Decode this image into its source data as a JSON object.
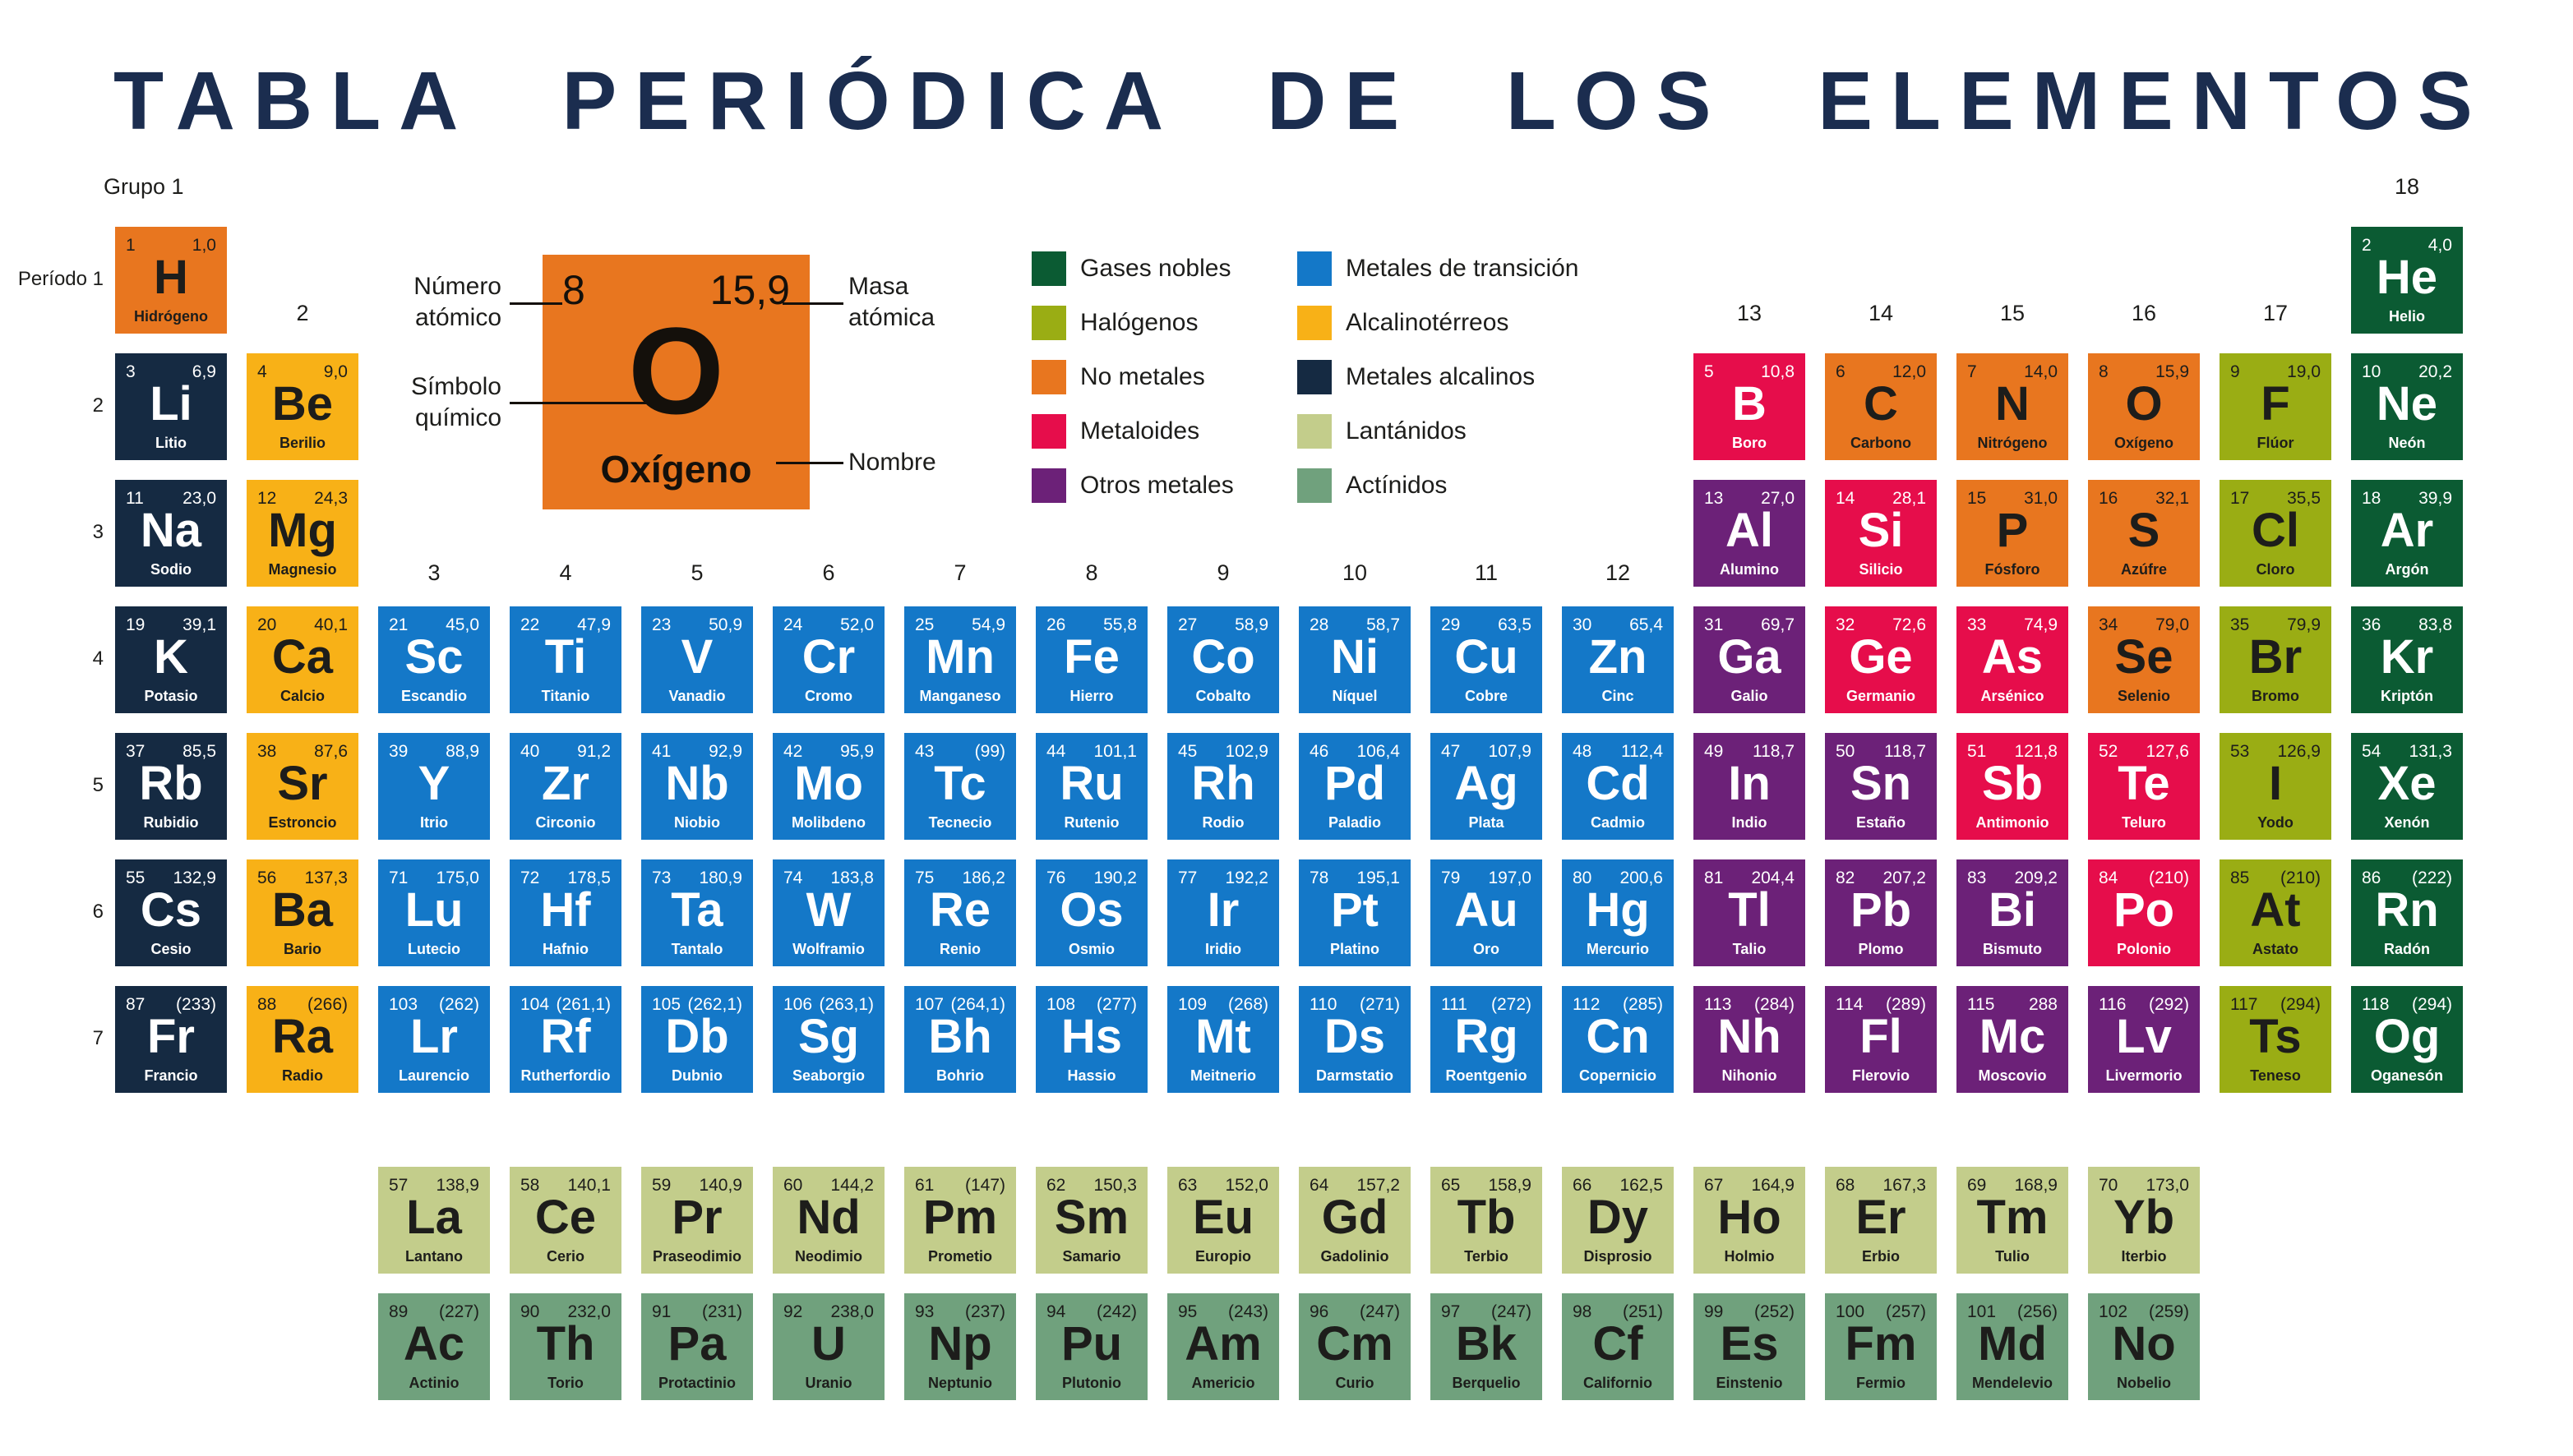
{
  "title": "TABLA PERIÓDICA DE LOS ELEMENTOS",
  "corner": {
    "grupo_label": "Grupo 1"
  },
  "period_labels": {
    "first": "Período 1",
    "rest": [
      "2",
      "3",
      "4",
      "5",
      "6",
      "7"
    ]
  },
  "group_labels": [
    {
      "text": "18",
      "col": 18,
      "tier": "top"
    },
    {
      "text": "2",
      "col": 2,
      "tier": "mid"
    },
    {
      "text": "13",
      "col": 13,
      "tier": "mid"
    },
    {
      "text": "14",
      "col": 14,
      "tier": "mid"
    },
    {
      "text": "15",
      "col": 15,
      "tier": "mid"
    },
    {
      "text": "16",
      "col": 16,
      "tier": "mid"
    },
    {
      "text": "17",
      "col": 17,
      "tier": "mid"
    },
    {
      "text": "3",
      "col": 3,
      "tier": "low"
    },
    {
      "text": "4",
      "col": 4,
      "tier": "low"
    },
    {
      "text": "5",
      "col": 5,
      "tier": "low"
    },
    {
      "text": "6",
      "col": 6,
      "tier": "low"
    },
    {
      "text": "7",
      "col": 7,
      "tier": "low"
    },
    {
      "text": "8",
      "col": 8,
      "tier": "low"
    },
    {
      "text": "9",
      "col": 9,
      "tier": "low"
    },
    {
      "text": "10",
      "col": 10,
      "tier": "low"
    },
    {
      "text": "11",
      "col": 11,
      "tier": "low"
    },
    {
      "text": "12",
      "col": 12,
      "tier": "low"
    }
  ],
  "example": {
    "atomic_number": "8",
    "atomic_mass": "15,9",
    "symbol": "O",
    "name": "Oxígeno",
    "annotations": {
      "numero": "Número\natómico",
      "simbolo": "Símbolo\nquímico",
      "masa": "Masa\natómica",
      "nombre": "Nombre"
    }
  },
  "legend": {
    "left": [
      {
        "label": "Gases nobles",
        "category": "noble"
      },
      {
        "label": "Halógenos",
        "category": "halogen"
      },
      {
        "label": "No metales",
        "category": "nonmetal"
      },
      {
        "label": "Metaloides",
        "category": "metalloid"
      },
      {
        "label": "Otros metales",
        "category": "othermetal"
      }
    ],
    "right": [
      {
        "label": "Metales de transición",
        "category": "transition"
      },
      {
        "label": "Alcalinotérreos",
        "category": "alkearth"
      },
      {
        "label": "Metales alcalinos",
        "category": "alkali"
      },
      {
        "label": "Lantánidos",
        "category": "lanthanide"
      },
      {
        "label": "Actínidos",
        "category": "actinide"
      }
    ]
  },
  "category_colors": {
    "nonmetal": "#E8761F",
    "noble": "#0B5B33",
    "halogen": "#9AAD14",
    "metalloid": "#E60D4B",
    "othermetal": "#6C2178",
    "transition": "#1478C8",
    "alkearth": "#F8B117",
    "alkali": "#152A42",
    "lanthanide": "#C3CD8B",
    "actinide": "#70A17D"
  },
  "dark_text_categories": [
    "nonmetal",
    "halogen",
    "alkearth",
    "lanthanide",
    "actinide"
  ],
  "text_colors": {
    "dark": "#1D1D1B",
    "light": "#FFFFFF"
  },
  "title_color": "#1B2D4F",
  "elements_schema": [
    "atomic_number",
    "atomic_mass",
    "symbol",
    "name",
    "category",
    "row",
    "col"
  ],
  "elements": [
    [
      "1",
      "1,0",
      "H",
      "Hidrógeno",
      "nonmetal",
      1,
      1
    ],
    [
      "2",
      "4,0",
      "He",
      "Helio",
      "noble",
      1,
      18
    ],
    [
      "3",
      "6,9",
      "Li",
      "Litio",
      "alkali",
      2,
      1
    ],
    [
      "4",
      "9,0",
      "Be",
      "Berilio",
      "alkearth",
      2,
      2
    ],
    [
      "5",
      "10,8",
      "B",
      "Boro",
      "metalloid",
      2,
      13
    ],
    [
      "6",
      "12,0",
      "C",
      "Carbono",
      "nonmetal",
      2,
      14
    ],
    [
      "7",
      "14,0",
      "N",
      "Nitrógeno",
      "nonmetal",
      2,
      15
    ],
    [
      "8",
      "15,9",
      "O",
      "Oxígeno",
      "nonmetal",
      2,
      16
    ],
    [
      "9",
      "19,0",
      "F",
      "Flúor",
      "halogen",
      2,
      17
    ],
    [
      "10",
      "20,2",
      "Ne",
      "Neón",
      "noble",
      2,
      18
    ],
    [
      "11",
      "23,0",
      "Na",
      "Sodio",
      "alkali",
      3,
      1
    ],
    [
      "12",
      "24,3",
      "Mg",
      "Magnesio",
      "alkearth",
      3,
      2
    ],
    [
      "13",
      "27,0",
      "Al",
      "Alumino",
      "othermetal",
      3,
      13
    ],
    [
      "14",
      "28,1",
      "Si",
      "Silicio",
      "metalloid",
      3,
      14
    ],
    [
      "15",
      "31,0",
      "P",
      "Fósforo",
      "nonmetal",
      3,
      15
    ],
    [
      "16",
      "32,1",
      "S",
      "Azúfre",
      "nonmetal",
      3,
      16
    ],
    [
      "17",
      "35,5",
      "Cl",
      "Cloro",
      "halogen",
      3,
      17
    ],
    [
      "18",
      "39,9",
      "Ar",
      "Argón",
      "noble",
      3,
      18
    ],
    [
      "19",
      "39,1",
      "K",
      "Potasio",
      "alkali",
      4,
      1
    ],
    [
      "20",
      "40,1",
      "Ca",
      "Calcio",
      "alkearth",
      4,
      2
    ],
    [
      "21",
      "45,0",
      "Sc",
      "Escandio",
      "transition",
      4,
      3
    ],
    [
      "22",
      "47,9",
      "Ti",
      "Titanio",
      "transition",
      4,
      4
    ],
    [
      "23",
      "50,9",
      "V",
      "Vanadio",
      "transition",
      4,
      5
    ],
    [
      "24",
      "52,0",
      "Cr",
      "Cromo",
      "transition",
      4,
      6
    ],
    [
      "25",
      "54,9",
      "Mn",
      "Manganeso",
      "transition",
      4,
      7
    ],
    [
      "26",
      "55,8",
      "Fe",
      "Hierro",
      "transition",
      4,
      8
    ],
    [
      "27",
      "58,9",
      "Co",
      "Cobalto",
      "transition",
      4,
      9
    ],
    [
      "28",
      "58,7",
      "Ni",
      "Níquel",
      "transition",
      4,
      10
    ],
    [
      "29",
      "63,5",
      "Cu",
      "Cobre",
      "transition",
      4,
      11
    ],
    [
      "30",
      "65,4",
      "Zn",
      "Cinc",
      "transition",
      4,
      12
    ],
    [
      "31",
      "69,7",
      "Ga",
      "Galio",
      "othermetal",
      4,
      13
    ],
    [
      "32",
      "72,6",
      "Ge",
      "Germanio",
      "metalloid",
      4,
      14
    ],
    [
      "33",
      "74,9",
      "As",
      "Arsénico",
      "metalloid",
      4,
      15
    ],
    [
      "34",
      "79,0",
      "Se",
      "Selenio",
      "nonmetal",
      4,
      16
    ],
    [
      "35",
      "79,9",
      "Br",
      "Bromo",
      "halogen",
      4,
      17
    ],
    [
      "36",
      "83,8",
      "Kr",
      "Kriptón",
      "noble",
      4,
      18
    ],
    [
      "37",
      "85,5",
      "Rb",
      "Rubidio",
      "alkali",
      5,
      1
    ],
    [
      "38",
      "87,6",
      "Sr",
      "Estroncio",
      "alkearth",
      5,
      2
    ],
    [
      "39",
      "88,9",
      "Y",
      "Itrio",
      "transition",
      5,
      3
    ],
    [
      "40",
      "91,2",
      "Zr",
      "Circonio",
      "transition",
      5,
      4
    ],
    [
      "41",
      "92,9",
      "Nb",
      "Niobio",
      "transition",
      5,
      5
    ],
    [
      "42",
      "95,9",
      "Mo",
      "Molibdeno",
      "transition",
      5,
      6
    ],
    [
      "43",
      "(99)",
      "Tc",
      "Tecnecio",
      "transition",
      5,
      7
    ],
    [
      "44",
      "101,1",
      "Ru",
      "Rutenio",
      "transition",
      5,
      8
    ],
    [
      "45",
      "102,9",
      "Rh",
      "Rodio",
      "transition",
      5,
      9
    ],
    [
      "46",
      "106,4",
      "Pd",
      "Paladio",
      "transition",
      5,
      10
    ],
    [
      "47",
      "107,9",
      "Ag",
      "Plata",
      "transition",
      5,
      11
    ],
    [
      "48",
      "112,4",
      "Cd",
      "Cadmio",
      "transition",
      5,
      12
    ],
    [
      "49",
      "118,7",
      "In",
      "Indio",
      "othermetal",
      5,
      13
    ],
    [
      "50",
      "118,7",
      "Sn",
      "Estaño",
      "othermetal",
      5,
      14
    ],
    [
      "51",
      "121,8",
      "Sb",
      "Antimonio",
      "metalloid",
      5,
      15
    ],
    [
      "52",
      "127,6",
      "Te",
      "Teluro",
      "metalloid",
      5,
      16
    ],
    [
      "53",
      "126,9",
      "I",
      "Yodo",
      "halogen",
      5,
      17
    ],
    [
      "54",
      "131,3",
      "Xe",
      "Xenón",
      "noble",
      5,
      18
    ],
    [
      "55",
      "132,9",
      "Cs",
      "Cesio",
      "alkali",
      6,
      1
    ],
    [
      "56",
      "137,3",
      "Ba",
      "Bario",
      "alkearth",
      6,
      2
    ],
    [
      "71",
      "175,0",
      "Lu",
      "Lutecio",
      "transition",
      6,
      3
    ],
    [
      "72",
      "178,5",
      "Hf",
      "Hafnio",
      "transition",
      6,
      4
    ],
    [
      "73",
      "180,9",
      "Ta",
      "Tantalo",
      "transition",
      6,
      5
    ],
    [
      "74",
      "183,8",
      "W",
      "Wolframio",
      "transition",
      6,
      6
    ],
    [
      "75",
      "186,2",
      "Re",
      "Renio",
      "transition",
      6,
      7
    ],
    [
      "76",
      "190,2",
      "Os",
      "Osmio",
      "transition",
      6,
      8
    ],
    [
      "77",
      "192,2",
      "Ir",
      "Iridio",
      "transition",
      6,
      9
    ],
    [
      "78",
      "195,1",
      "Pt",
      "Platino",
      "transition",
      6,
      10
    ],
    [
      "79",
      "197,0",
      "Au",
      "Oro",
      "transition",
      6,
      11
    ],
    [
      "80",
      "200,6",
      "Hg",
      "Mercurio",
      "transition",
      6,
      12
    ],
    [
      "81",
      "204,4",
      "Tl",
      "Talio",
      "othermetal",
      6,
      13
    ],
    [
      "82",
      "207,2",
      "Pb",
      "Plomo",
      "othermetal",
      6,
      14
    ],
    [
      "83",
      "209,2",
      "Bi",
      "Bismuto",
      "othermetal",
      6,
      15
    ],
    [
      "84",
      "(210)",
      "Po",
      "Polonio",
      "metalloid",
      6,
      16
    ],
    [
      "85",
      "(210)",
      "At",
      "Astato",
      "halogen",
      6,
      17
    ],
    [
      "86",
      "(222)",
      "Rn",
      "Radón",
      "noble",
      6,
      18
    ],
    [
      "87",
      "(233)",
      "Fr",
      "Francio",
      "alkali",
      7,
      1
    ],
    [
      "88",
      "(266)",
      "Ra",
      "Radio",
      "alkearth",
      7,
      2
    ],
    [
      "103",
      "(262)",
      "Lr",
      "Laurencio",
      "transition",
      7,
      3
    ],
    [
      "104",
      "(261,1)",
      "Rf",
      "Rutherfordio",
      "transition",
      7,
      4
    ],
    [
      "105",
      "(262,1)",
      "Db",
      "Dubnio",
      "transition",
      7,
      5
    ],
    [
      "106",
      "(263,1)",
      "Sg",
      "Seaborgio",
      "transition",
      7,
      6
    ],
    [
      "107",
      "(264,1)",
      "Bh",
      "Bohrio",
      "transition",
      7,
      7
    ],
    [
      "108",
      "(277)",
      "Hs",
      "Hassio",
      "transition",
      7,
      8
    ],
    [
      "109",
      "(268)",
      "Mt",
      "Meitnerio",
      "transition",
      7,
      9
    ],
    [
      "110",
      "(271)",
      "Ds",
      "Darmstatio",
      "transition",
      7,
      10
    ],
    [
      "111",
      "(272)",
      "Rg",
      "Roentgenio",
      "transition",
      7,
      11
    ],
    [
      "112",
      "(285)",
      "Cn",
      "Copernicio",
      "transition",
      7,
      12
    ],
    [
      "113",
      "(284)",
      "Nh",
      "Nihonio",
      "othermetal",
      7,
      13
    ],
    [
      "114",
      "(289)",
      "Fl",
      "Flerovio",
      "othermetal",
      7,
      14
    ],
    [
      "115",
      "288",
      "Mc",
      "Moscovio",
      "othermetal",
      7,
      15
    ],
    [
      "116",
      "(292)",
      "Lv",
      "Livermorio",
      "othermetal",
      7,
      16
    ],
    [
      "117",
      "(294)",
      "Ts",
      "Teneso",
      "halogen",
      7,
      17
    ],
    [
      "118",
      "(294)",
      "Og",
      "Oganesón",
      "noble",
      7,
      18
    ],
    [
      "57",
      "138,9",
      "La",
      "Lantano",
      "lanthanide",
      8,
      3
    ],
    [
      "58",
      "140,1",
      "Ce",
      "Cerio",
      "lanthanide",
      8,
      4
    ],
    [
      "59",
      "140,9",
      "Pr",
      "Praseodimio",
      "lanthanide",
      8,
      5
    ],
    [
      "60",
      "144,2",
      "Nd",
      "Neodimio",
      "lanthanide",
      8,
      6
    ],
    [
      "61",
      "(147)",
      "Pm",
      "Prometio",
      "lanthanide",
      8,
      7
    ],
    [
      "62",
      "150,3",
      "Sm",
      "Samario",
      "lanthanide",
      8,
      8
    ],
    [
      "63",
      "152,0",
      "Eu",
      "Europio",
      "lanthanide",
      8,
      9
    ],
    [
      "64",
      "157,2",
      "Gd",
      "Gadolinio",
      "lanthanide",
      8,
      10
    ],
    [
      "65",
      "158,9",
      "Tb",
      "Terbio",
      "lanthanide",
      8,
      11
    ],
    [
      "66",
      "162,5",
      "Dy",
      "Disprosio",
      "lanthanide",
      8,
      12
    ],
    [
      "67",
      "164,9",
      "Ho",
      "Holmio",
      "lanthanide",
      8,
      13
    ],
    [
      "68",
      "167,3",
      "Er",
      "Erbio",
      "lanthanide",
      8,
      14
    ],
    [
      "69",
      "168,9",
      "Tm",
      "Tulio",
      "lanthanide",
      8,
      15
    ],
    [
      "70",
      "173,0",
      "Yb",
      "Iterbio",
      "lanthanide",
      8,
      16
    ],
    [
      "89",
      "(227)",
      "Ac",
      "Actinio",
      "actinide",
      9,
      3
    ],
    [
      "90",
      "232,0",
      "Th",
      "Torio",
      "actinide",
      9,
      4
    ],
    [
      "91",
      "(231)",
      "Pa",
      "Protactinio",
      "actinide",
      9,
      5
    ],
    [
      "92",
      "238,0",
      "U",
      "Uranio",
      "actinide",
      9,
      6
    ],
    [
      "93",
      "(237)",
      "Np",
      "Neptunio",
      "actinide",
      9,
      7
    ],
    [
      "94",
      "(242)",
      "Pu",
      "Plutonio",
      "actinide",
      9,
      8
    ],
    [
      "95",
      "(243)",
      "Am",
      "Americio",
      "actinide",
      9,
      9
    ],
    [
      "96",
      "(247)",
      "Cm",
      "Curio",
      "actinide",
      9,
      10
    ],
    [
      "97",
      "(247)",
      "Bk",
      "Berquelio",
      "actinide",
      9,
      11
    ],
    [
      "98",
      "(251)",
      "Cf",
      "Californio",
      "actinide",
      9,
      12
    ],
    [
      "99",
      "(252)",
      "Es",
      "Einstenio",
      "actinide",
      9,
      13
    ],
    [
      "100",
      "(257)",
      "Fm",
      "Fermio",
      "actinide",
      9,
      14
    ],
    [
      "101",
      "(256)",
      "Md",
      "Mendelevio",
      "actinide",
      9,
      15
    ],
    [
      "102",
      "(259)",
      "No",
      "Nobelio",
      "actinide",
      9,
      16
    ]
  ]
}
